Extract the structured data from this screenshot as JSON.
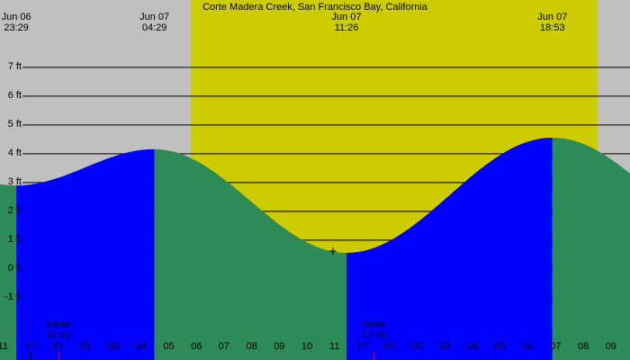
{
  "chart_data": {
    "type": "tide",
    "title": "Corte Madera Creek, San Francisco Bay, California",
    "background": "#c0c0c0",
    "daylight_color": "#cccc00",
    "flood_color": "#0000ff",
    "ebb_color": "#2e8b57",
    "daylight": [
      5.8,
      20.52
    ],
    "xlim": [
      -1.107,
      21.69
    ],
    "xticks": [
      {
        "value": -1,
        "label": "11"
      },
      {
        "value": 0,
        "label": "12"
      },
      {
        "value": 1,
        "label": "01"
      },
      {
        "value": 2,
        "label": "02"
      },
      {
        "value": 3,
        "label": "03"
      },
      {
        "value": 4,
        "label": "04"
      },
      {
        "value": 5,
        "label": "05"
      },
      {
        "value": 6,
        "label": "06"
      },
      {
        "value": 7,
        "label": "07"
      },
      {
        "value": 8,
        "label": "08"
      },
      {
        "value": 9,
        "label": "09"
      },
      {
        "value": 10,
        "label": "10"
      },
      {
        "value": 11,
        "label": "11"
      },
      {
        "value": 12,
        "label": "12"
      },
      {
        "value": 13,
        "label": "01"
      },
      {
        "value": 14,
        "label": "02"
      },
      {
        "value": 15,
        "label": "03"
      },
      {
        "value": 16,
        "label": "04"
      },
      {
        "value": 17,
        "label": "05"
      },
      {
        "value": 18,
        "label": "06"
      },
      {
        "value": 19,
        "label": "07"
      },
      {
        "value": 20,
        "label": "08"
      },
      {
        "value": 21,
        "label": "09"
      }
    ],
    "ylim": [
      -3.16,
      9.34
    ],
    "yticks": [
      {
        "value": 7,
        "label": "7 ft"
      },
      {
        "value": 6,
        "label": "6 ft"
      },
      {
        "value": 5,
        "label": "5 ft"
      },
      {
        "value": 4,
        "label": "4 ft"
      },
      {
        "value": 3,
        "label": "3 ft"
      },
      {
        "value": 2,
        "label": "2 ft"
      },
      {
        "value": 1,
        "label": "1 ft"
      },
      {
        "value": 0,
        "label": "0 ft"
      },
      {
        "value": -1,
        "label": "-1 ft"
      }
    ],
    "events": [
      {
        "date": "Jun 06",
        "time": "23:29",
        "x": -0.517,
        "value": 2.9
      },
      {
        "date": "Jun 07",
        "time": "04:29",
        "x": 4.483,
        "value": 4.16
      },
      {
        "date": "Jun 07",
        "time": "11:26",
        "x": 11.433,
        "value": 0.56
      },
      {
        "date": "Jun 07",
        "time": "18:53",
        "x": 18.883,
        "value": 4.56
      }
    ],
    "moon": [
      {
        "label": "Mrise",
        "time": "01:02",
        "x": 1.033
      },
      {
        "label": "Mset",
        "time": "12:26",
        "x": 12.433
      }
    ]
  }
}
